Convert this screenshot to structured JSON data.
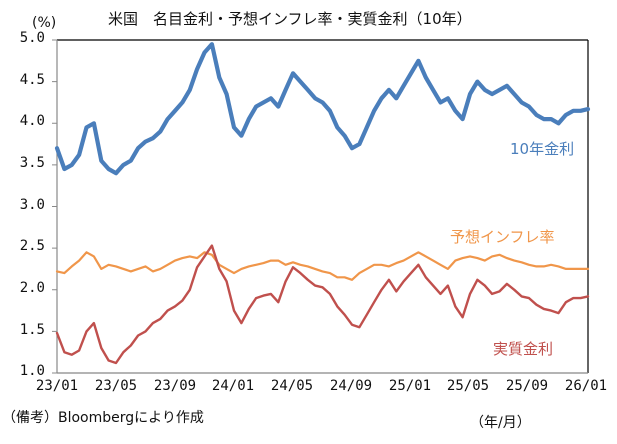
{
  "chart_data": {
    "type": "line",
    "title": "米国　名目金利・予想インフレ率・実質金利（10年）",
    "ylabel": "(%)",
    "xlabel": "（年/月）",
    "ylim": [
      1.0,
      5.0
    ],
    "yticks": [
      "5.0",
      "4.5",
      "4.0",
      "3.5",
      "3.0",
      "2.5",
      "2.0",
      "1.5",
      "1.0"
    ],
    "ytick_values": [
      5.0,
      4.5,
      4.0,
      3.5,
      3.0,
      2.5,
      2.0,
      1.5,
      1.0
    ],
    "xlim_months_since_2023_01": [
      0,
      36
    ],
    "xticks": [
      "23/01",
      "23/05",
      "23/09",
      "24/01",
      "24/05",
      "24/09",
      "25/01",
      "25/05",
      "25/09",
      "26/01"
    ],
    "xtick_months": [
      0,
      4,
      8,
      12,
      16,
      20,
      24,
      28,
      32,
      36
    ],
    "grid": false,
    "source_note": "（備考）Bloombergにより作成",
    "x_months": [
      0,
      0.5,
      1,
      1.5,
      2,
      2.5,
      3,
      3.5,
      4,
      4.5,
      5,
      5.5,
      6,
      6.5,
      7,
      7.5,
      8,
      8.5,
      9,
      9.5,
      10,
      10.5,
      11,
      11.5,
      12,
      12.5,
      13,
      13.5,
      14,
      14.5,
      15,
      15.5,
      16,
      16.5,
      17,
      17.5,
      18,
      18.5,
      19,
      19.5,
      20,
      20.5,
      21,
      21.5,
      22,
      22.5,
      23,
      23.5,
      24,
      24.5,
      25,
      25.5,
      26,
      26.5,
      27,
      27.5,
      28,
      28.5,
      29,
      29.5,
      30,
      30.5,
      31,
      31.5,
      32,
      32.5,
      33,
      33.5,
      34,
      34.5,
      35,
      35.5,
      36
    ],
    "series": [
      {
        "name": "10年金利",
        "color": "#4a7ebb",
        "values": [
          3.7,
          3.45,
          3.5,
          3.62,
          3.95,
          4.0,
          3.55,
          3.45,
          3.4,
          3.5,
          3.55,
          3.7,
          3.78,
          3.82,
          3.9,
          4.05,
          4.15,
          4.25,
          4.4,
          4.65,
          4.85,
          4.95,
          4.55,
          4.35,
          3.95,
          3.85,
          4.05,
          4.2,
          4.25,
          4.3,
          4.2,
          4.4,
          4.6,
          4.5,
          4.4,
          4.3,
          4.25,
          4.15,
          3.95,
          3.85,
          3.7,
          3.75,
          3.95,
          4.15,
          4.3,
          4.4,
          4.3,
          4.45,
          4.6,
          4.75,
          4.55,
          4.4,
          4.25,
          4.3,
          4.15,
          4.05,
          4.35,
          4.5,
          4.4,
          4.35,
          4.4,
          4.45,
          4.35,
          4.25,
          4.2,
          4.1,
          4.05,
          4.05,
          4.0,
          4.1,
          4.15,
          4.15,
          4.17
        ]
      },
      {
        "name": "予想インフレ率",
        "color": "#f0964a",
        "values": [
          2.22,
          2.2,
          2.28,
          2.35,
          2.45,
          2.4,
          2.25,
          2.3,
          2.28,
          2.25,
          2.22,
          2.25,
          2.28,
          2.22,
          2.25,
          2.3,
          2.35,
          2.38,
          2.4,
          2.38,
          2.45,
          2.42,
          2.3,
          2.25,
          2.2,
          2.25,
          2.28,
          2.3,
          2.32,
          2.35,
          2.35,
          2.3,
          2.33,
          2.3,
          2.28,
          2.25,
          2.22,
          2.2,
          2.15,
          2.15,
          2.12,
          2.2,
          2.25,
          2.3,
          2.3,
          2.28,
          2.32,
          2.35,
          2.4,
          2.45,
          2.4,
          2.35,
          2.3,
          2.25,
          2.35,
          2.38,
          2.4,
          2.38,
          2.35,
          2.4,
          2.42,
          2.38,
          2.35,
          2.33,
          2.3,
          2.28,
          2.28,
          2.3,
          2.28,
          2.25,
          2.25,
          2.25,
          2.25
        ]
      },
      {
        "name": "実質金利",
        "color": "#c0504d",
        "values": [
          1.48,
          1.25,
          1.22,
          1.27,
          1.5,
          1.6,
          1.3,
          1.15,
          1.12,
          1.25,
          1.33,
          1.45,
          1.5,
          1.6,
          1.65,
          1.75,
          1.8,
          1.87,
          2.0,
          2.27,
          2.4,
          2.53,
          2.25,
          2.1,
          1.75,
          1.6,
          1.77,
          1.9,
          1.93,
          1.95,
          1.85,
          2.1,
          2.27,
          2.2,
          2.12,
          2.05,
          2.03,
          1.95,
          1.8,
          1.7,
          1.58,
          1.55,
          1.7,
          1.85,
          2.0,
          2.12,
          1.98,
          2.1,
          2.2,
          2.3,
          2.15,
          2.05,
          1.95,
          2.05,
          1.8,
          1.67,
          1.95,
          2.12,
          2.05,
          1.95,
          1.98,
          2.07,
          2.0,
          1.92,
          1.9,
          1.82,
          1.77,
          1.75,
          1.72,
          1.85,
          1.9,
          1.9,
          1.92
        ]
      }
    ],
    "annotations": [
      {
        "text": "10年金利",
        "series": "10年金利"
      },
      {
        "text": "予想インフレ率",
        "series": "予想インフレ率"
      },
      {
        "text": "実質金利",
        "series": "実質金利"
      }
    ]
  }
}
